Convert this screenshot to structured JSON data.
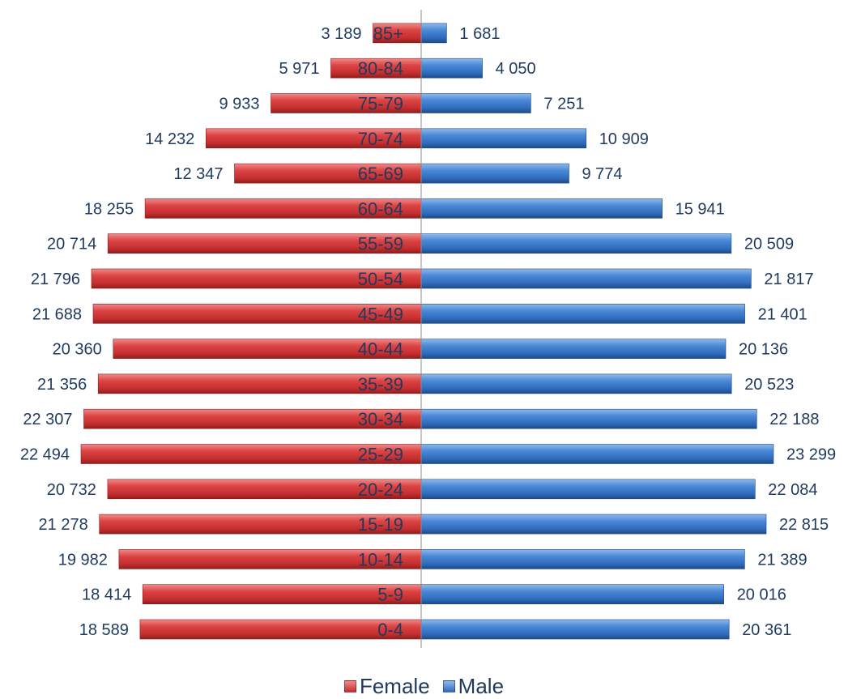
{
  "chart_data": {
    "type": "bar",
    "orientation": "horizontal-population-pyramid",
    "categories": [
      "0-4",
      "5-9",
      "10-14",
      "15-19",
      "20-24",
      "25-29",
      "30-34",
      "35-39",
      "40-44",
      "45-49",
      "50-54",
      "55-59",
      "60-64",
      "65-69",
      "70-74",
      "75-79",
      "80-84",
      "85+"
    ],
    "series": [
      {
        "name": "Female",
        "side": "left",
        "values": [
          18589,
          18414,
          19982,
          21278,
          20732,
          22494,
          22307,
          21356,
          20360,
          21688,
          21796,
          20714,
          18255,
          12347,
          14232,
          9933,
          5971,
          3189
        ],
        "labels": [
          "18 589",
          "18 414",
          "19 982",
          "21 278",
          "20 732",
          "22 494",
          "22 307",
          "21 356",
          "20 360",
          "21 688",
          "21 796",
          "20 714",
          "18 255",
          "12 347",
          "14 232",
          "9 933",
          "5 971",
          "3 189"
        ]
      },
      {
        "name": "Male",
        "side": "right",
        "values": [
          20361,
          20016,
          21389,
          22815,
          22084,
          23299,
          22188,
          20523,
          20136,
          21401,
          21817,
          20509,
          15941,
          9774,
          10909,
          7251,
          4050,
          1681
        ],
        "labels": [
          "20 361",
          "20 016",
          "21 389",
          "22 815",
          "22 084",
          "23 299",
          "22 188",
          "20 523",
          "20 136",
          "21 401",
          "21 817",
          "20 509",
          "15 941",
          "9 774",
          "10 909",
          "7 251",
          "4 050",
          "1 681"
        ]
      }
    ],
    "colors": {
      "Female": "#d63c3c",
      "Male": "#3f7dcc",
      "text": "#1f3a5f",
      "axis": "#8c8c8c"
    },
    "legend_position": "bottom",
    "grid": false,
    "title": "",
    "xlabel": "",
    "ylabel": ""
  },
  "legend": {
    "female_label": "Female",
    "male_label": "Male"
  }
}
